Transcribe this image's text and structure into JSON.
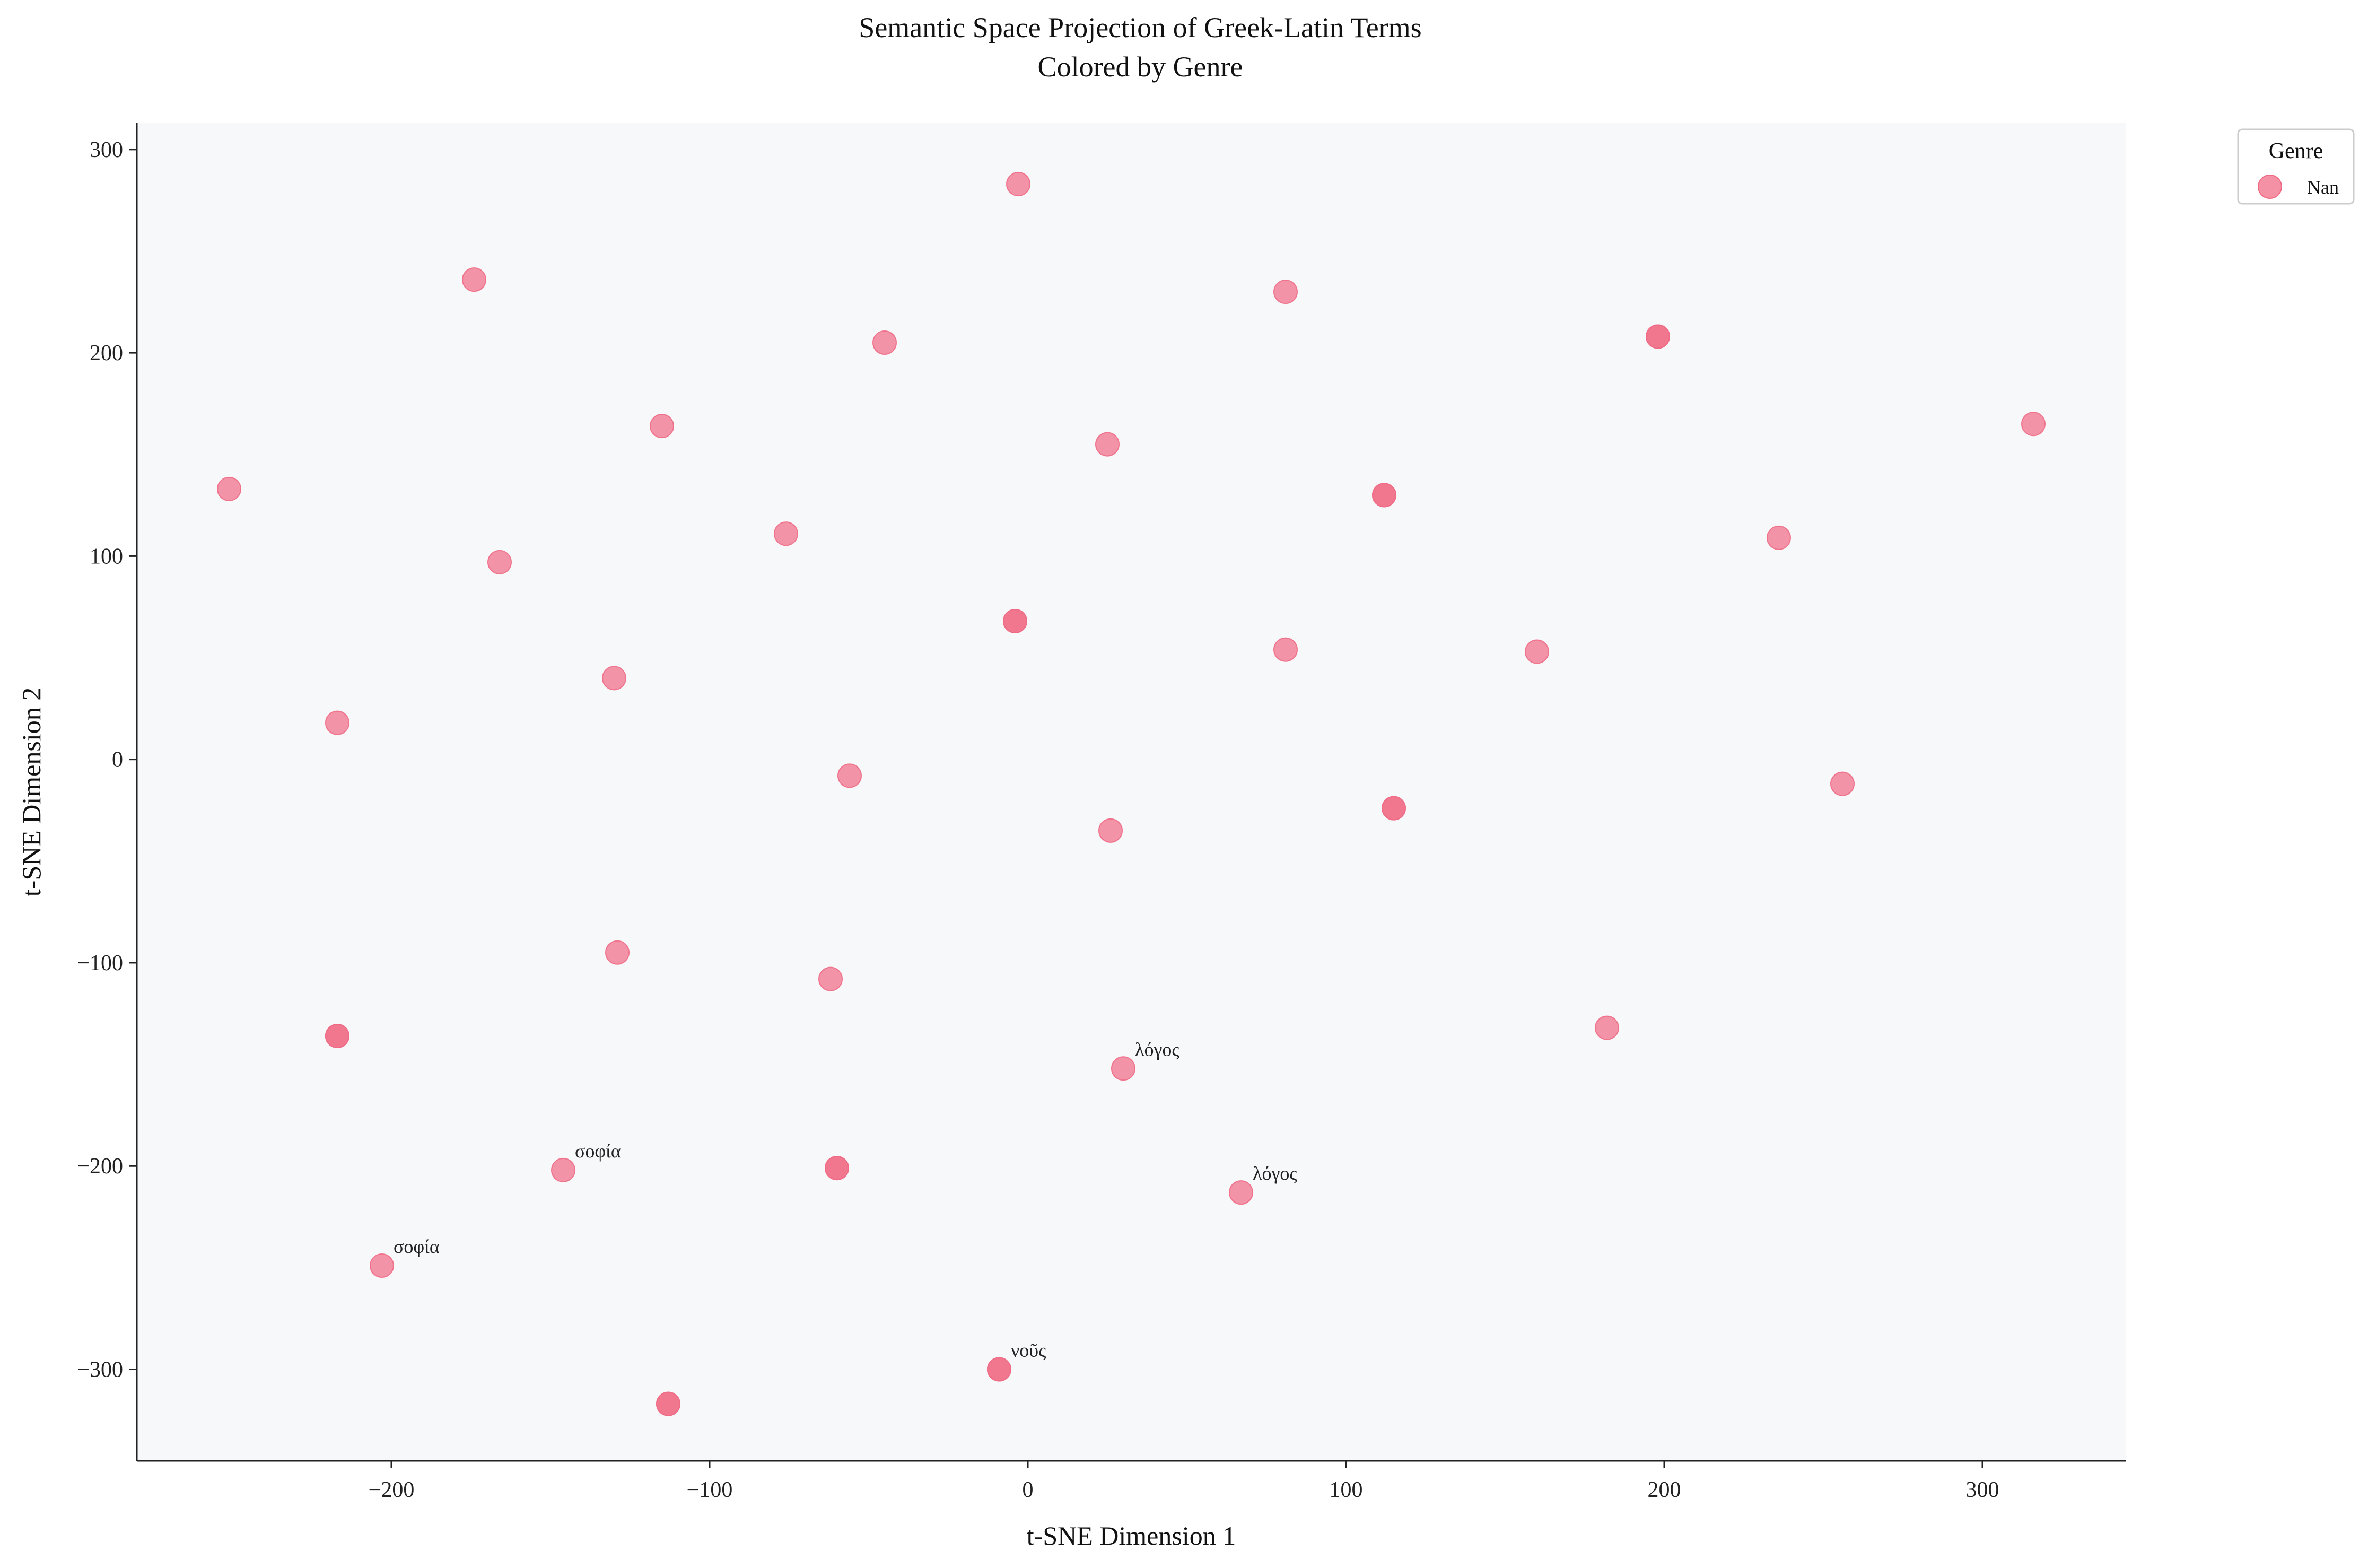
{
  "chart_data": {
    "type": "scatter",
    "title": "Semantic Space Projection of Greek-Latin Terms\nColored by Genre",
    "xlabel": "t-SNE Dimension 1",
    "ylabel": "t-SNE Dimension 2",
    "xlim": [
      -280,
      345
    ],
    "ylim": [
      -345,
      313
    ],
    "xticks": [
      -200,
      -100,
      0,
      100,
      200,
      300
    ],
    "yticks": [
      -300,
      -200,
      -100,
      0,
      100,
      200,
      300
    ],
    "xtick_labels": [
      "−200",
      "−100",
      "0",
      "100",
      "200",
      "300"
    ],
    "ytick_labels": [
      "−300",
      "−200",
      "−100",
      "0",
      "100",
      "200",
      "300"
    ],
    "grid": false,
    "legend_position": "upper-right-outside",
    "legend": {
      "title": "Genre",
      "entries": [
        "Nan"
      ]
    },
    "colors": {
      "point": "#f06c86",
      "plot_bg": "#f7f8fa",
      "axis": "#222222"
    },
    "series": [
      {
        "name": "Nan",
        "points": [
          {
            "x": -3,
            "y": 283
          },
          {
            "x": -174,
            "y": 236
          },
          {
            "x": 81,
            "y": 230
          },
          {
            "x": -45,
            "y": 205
          },
          {
            "x": 198,
            "y": 208
          },
          {
            "x": 198,
            "y": 208
          },
          {
            "x": -115,
            "y": 164
          },
          {
            "x": 25,
            "y": 155
          },
          {
            "x": 316,
            "y": 165
          },
          {
            "x": -251,
            "y": 133
          },
          {
            "x": 112,
            "y": 130
          },
          {
            "x": 112,
            "y": 130
          },
          {
            "x": -76,
            "y": 111
          },
          {
            "x": 236,
            "y": 109
          },
          {
            "x": -166,
            "y": 97
          },
          {
            "x": -4,
            "y": 68
          },
          {
            "x": -4,
            "y": 68
          },
          {
            "x": 81,
            "y": 54
          },
          {
            "x": 160,
            "y": 53
          },
          {
            "x": -130,
            "y": 40
          },
          {
            "x": -217,
            "y": 18
          },
          {
            "x": -56,
            "y": -8
          },
          {
            "x": 256,
            "y": -12
          },
          {
            "x": 115,
            "y": -24
          },
          {
            "x": 115,
            "y": -24
          },
          {
            "x": 26,
            "y": -35
          },
          {
            "x": -129,
            "y": -95
          },
          {
            "x": -62,
            "y": -108
          },
          {
            "x": -217,
            "y": -136
          },
          {
            "x": -217,
            "y": -136
          },
          {
            "x": 182,
            "y": -132
          },
          {
            "x": 30,
            "y": -152,
            "label": "λόγος"
          },
          {
            "x": -146,
            "y": -202,
            "label": "σοφία"
          },
          {
            "x": -60,
            "y": -201
          },
          {
            "x": -60,
            "y": -201
          },
          {
            "x": 67,
            "y": -213,
            "label": "λόγος"
          },
          {
            "x": -203,
            "y": -249,
            "label": "σοφία"
          },
          {
            "x": -9,
            "y": -300,
            "label": "νοῦς"
          },
          {
            "x": -9,
            "y": -300
          },
          {
            "x": -113,
            "y": -317
          },
          {
            "x": -113,
            "y": -317
          }
        ]
      }
    ]
  }
}
